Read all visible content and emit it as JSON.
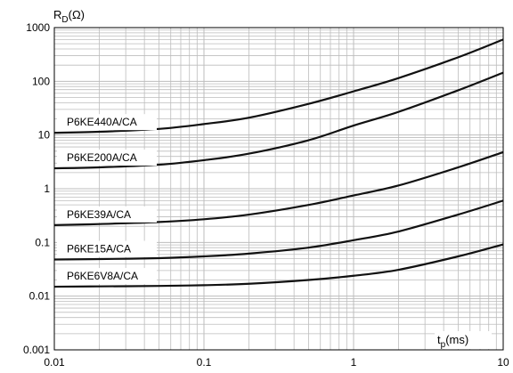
{
  "chart_data": {
    "type": "line",
    "x_scale": "log",
    "y_scale": "log",
    "xlim": [
      0.01,
      10
    ],
    "ylim": [
      0.001,
      1000
    ],
    "grid": true,
    "xlabel": {
      "main": "t",
      "sub": "p",
      "rest": "(ms)"
    },
    "ylabel": {
      "main": "R",
      "sub": "D",
      "rest": "(Ω)"
    },
    "x_ticks": [
      {
        "value": 0.01,
        "label": "0.01"
      },
      {
        "value": 0.1,
        "label": "0.1"
      },
      {
        "value": 1,
        "label": "1"
      },
      {
        "value": 10,
        "label": "10"
      }
    ],
    "y_ticks": [
      {
        "value": 1000,
        "label": "1000"
      },
      {
        "value": 100,
        "label": "100"
      },
      {
        "value": 10,
        "label": "10"
      },
      {
        "value": 1,
        "label": "1"
      },
      {
        "value": 0.1,
        "label": "0.1"
      },
      {
        "value": 0.01,
        "label": "0.01"
      },
      {
        "value": 0.001,
        "label": "0.001"
      }
    ],
    "series": [
      {
        "name": "P6KE440A/CA",
        "x": [
          0.01,
          0.02,
          0.05,
          0.1,
          0.2,
          0.5,
          1,
          2,
          5,
          10
        ],
        "y": [
          11,
          11.5,
          13,
          16,
          21,
          38,
          65,
          115,
          280,
          600
        ]
      },
      {
        "name": "P6KE200A/CA",
        "x": [
          0.01,
          0.02,
          0.05,
          0.1,
          0.2,
          0.5,
          1,
          2,
          5,
          10
        ],
        "y": [
          2.4,
          2.5,
          2.8,
          3.4,
          4.5,
          8,
          15,
          27,
          68,
          145
        ]
      },
      {
        "name": "P6KE39A/CA",
        "x": [
          0.01,
          0.02,
          0.05,
          0.1,
          0.2,
          0.5,
          1,
          2,
          5,
          10
        ],
        "y": [
          0.21,
          0.22,
          0.24,
          0.27,
          0.33,
          0.5,
          0.75,
          1.15,
          2.5,
          4.8
        ]
      },
      {
        "name": "P6KE15A/CA",
        "x": [
          0.01,
          0.02,
          0.05,
          0.1,
          0.2,
          0.5,
          1,
          2,
          5,
          10
        ],
        "y": [
          0.048,
          0.049,
          0.051,
          0.055,
          0.062,
          0.08,
          0.11,
          0.16,
          0.33,
          0.6
        ]
      },
      {
        "name": "P6KE6V8A/CA",
        "x": [
          0.01,
          0.02,
          0.05,
          0.1,
          0.2,
          0.5,
          1,
          2,
          5,
          10
        ],
        "y": [
          0.015,
          0.0152,
          0.0155,
          0.016,
          0.017,
          0.02,
          0.024,
          0.031,
          0.055,
          0.092
        ]
      }
    ],
    "line_color": "#111111",
    "grid_color": "#bdbdbd"
  }
}
